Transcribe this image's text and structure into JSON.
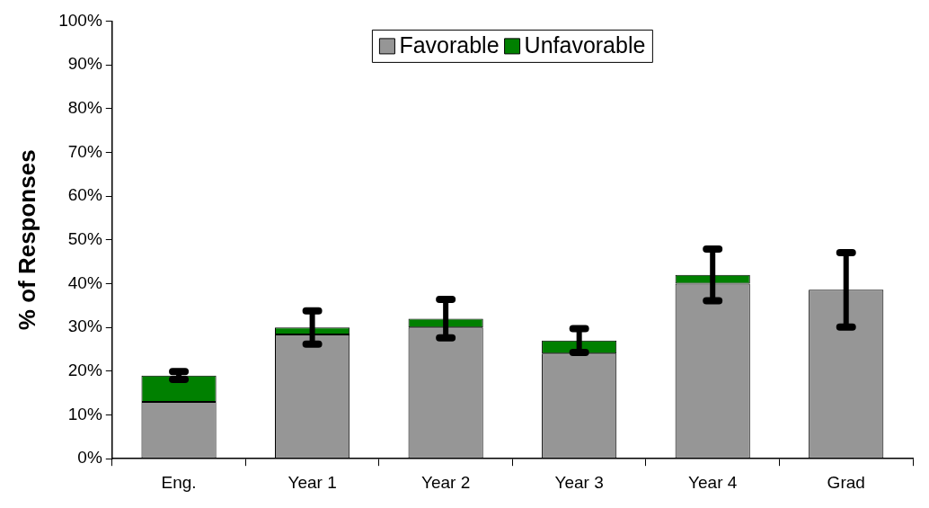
{
  "chart_data": {
    "type": "bar",
    "stacked": true,
    "ylabel": "% of Responses",
    "categories": [
      "Eng.",
      "Year 1",
      "Year 2",
      "Year 3",
      "Year 4",
      "Grad"
    ],
    "series": [
      {
        "name": "Favorable",
        "color": "#969696",
        "values": [
          13,
          28.4,
          30,
          24,
          40,
          38.6
        ],
        "errors": [
          null,
          null,
          null,
          null,
          null,
          8.5
        ]
      },
      {
        "name": "Unfavorable",
        "color": "#008000",
        "values": [
          6,
          1.6,
          2,
          3,
          2,
          0
        ],
        "errors": [
          0.9,
          3.8,
          4.4,
          2.7,
          5.9,
          null
        ]
      }
    ],
    "ylim": [
      0,
      100
    ],
    "yticks": [
      {
        "value": 0,
        "label": "0%"
      },
      {
        "value": 10,
        "label": "10%"
      },
      {
        "value": 20,
        "label": "20%"
      },
      {
        "value": 30,
        "label": "30%"
      },
      {
        "value": 40,
        "label": "40%"
      },
      {
        "value": 50,
        "label": "50%"
      },
      {
        "value": 60,
        "label": "60%"
      },
      {
        "value": 70,
        "label": "70%"
      },
      {
        "value": 80,
        "label": "80%"
      },
      {
        "value": 90,
        "label": "90%"
      },
      {
        "value": 100,
        "label": "100%"
      }
    ],
    "legend": "top",
    "grid": false
  }
}
